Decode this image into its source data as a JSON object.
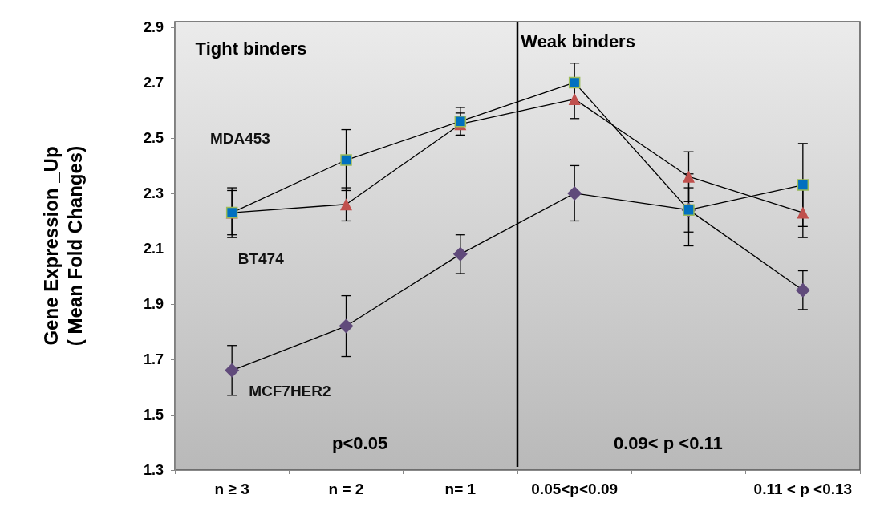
{
  "chart_data": {
    "type": "line",
    "ylabel": "Gene Expression _Up\n( Mean Fold Changes)",
    "categories": [
      "n ≥ 3",
      "n = 2",
      "n= 1",
      "0.05<p<0.09",
      null,
      "0.11 < p <0.13"
    ],
    "series": [
      {
        "name": "MDA453",
        "color": "#0070c0",
        "marker": "square",
        "values": [
          2.23,
          2.42,
          2.56,
          2.7,
          2.24,
          2.33
        ],
        "errors": [
          0.08,
          0.11,
          0.05,
          0.07,
          0.08,
          0.15
        ]
      },
      {
        "name": "BT474",
        "color": "#c0504d",
        "marker": "triangle",
        "values": [
          2.23,
          2.26,
          2.55,
          2.64,
          2.36,
          2.23
        ],
        "errors": [
          0.09,
          0.06,
          0.04,
          0.07,
          0.09,
          0.09
        ]
      },
      {
        "name": "MCF7HER2",
        "color": "#604a7b",
        "marker": "diamond",
        "values": [
          1.66,
          1.82,
          2.08,
          2.3,
          2.24,
          1.95
        ],
        "errors": [
          0.09,
          0.11,
          0.07,
          0.1,
          0.13,
          0.07
        ]
      }
    ],
    "ylim": [
      1.3,
      2.92
    ],
    "yticks": [
      1.3,
      1.5,
      1.7,
      1.9,
      2.1,
      2.3,
      2.5,
      2.7,
      2.9
    ],
    "annotations": [
      "Tight binders",
      "Weak binders",
      "p<0.05",
      "0.09< p <0.11"
    ],
    "grid": false,
    "legend": false
  }
}
